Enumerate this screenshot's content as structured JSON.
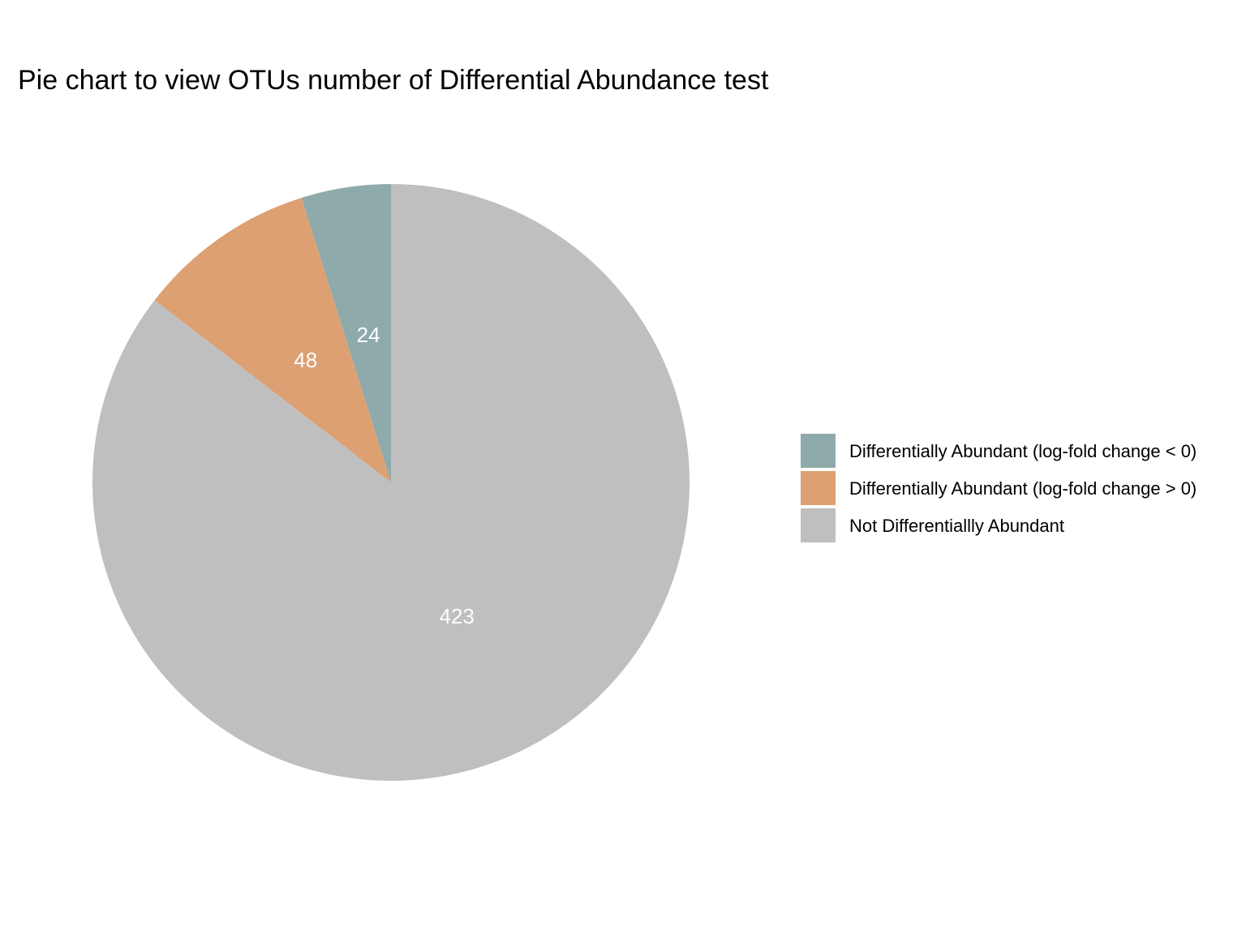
{
  "chart_data": {
    "type": "pie",
    "title": "Pie chart to view OTUs number of Differential Abundance test",
    "slices": [
      {
        "name": "Differentially Abundant (log-fold change < 0)",
        "value": 24,
        "label": "24",
        "color": "#8FAAAA"
      },
      {
        "name": "Differentially Abundant (log-fold change > 0)",
        "value": 48,
        "label": "48",
        "color": "#DDA073"
      },
      {
        "name": "Not Differentiallly Abundant",
        "value": 423,
        "label": "423",
        "color": "#BFBFBF"
      }
    ],
    "start_angle": "12 o'clock",
    "direction": "counterclockwise",
    "legend_position": "right"
  }
}
